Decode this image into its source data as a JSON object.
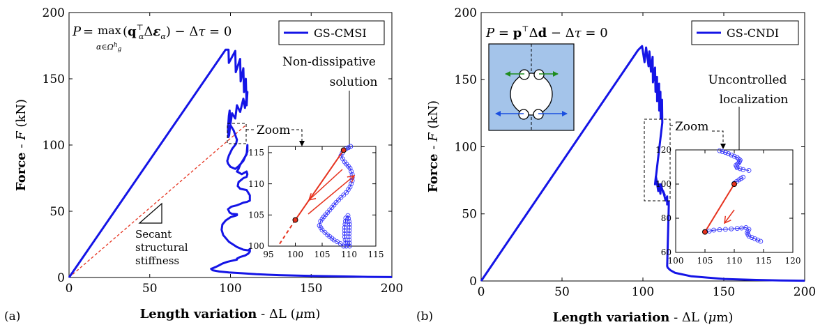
{
  "panels": [
    {
      "tag": "(a)",
      "equation": "P = max_{α∈Ω_g^h}(q_α^T Δε_α) − Δτ = 0",
      "legend": "GS-CMSI",
      "annotations": {
        "callout": [
          "Non-dissipative",
          "solution"
        ],
        "zoom": "Zoom",
        "secant": [
          "Secant",
          "structural",
          "stiffness"
        ]
      }
    },
    {
      "tag": "(b)",
      "equation": "P = p^T Δd − Δτ = 0",
      "legend": "GS-CNDI",
      "annotations": {
        "callout": [
          "Uncontrolled",
          "localization"
        ],
        "zoom": "Zoom"
      }
    }
  ],
  "colors": {
    "curve": "#1414e6",
    "highlight": "#e6321e",
    "inset_fill": "#a4c4ea",
    "green_arrow": "#1e8c1e"
  },
  "chart_data": [
    {
      "type": "line",
      "xlabel": "Length variation - ΔL (μm)",
      "ylabel": "Force - F (kN)",
      "xlim": [
        0,
        200
      ],
      "ylim": [
        0,
        200
      ],
      "xticks": [
        "0",
        "50",
        "100",
        "150",
        "200"
      ],
      "yticks": [
        "0",
        "50",
        "100",
        "150",
        "200"
      ],
      "series": [
        {
          "name": "GS-CMSI",
          "x": [
            0,
            97,
            98.8,
            99,
            103,
            103.3,
            106,
            106.3,
            108,
            108.4,
            109.5,
            110,
            110.5,
            109,
            108,
            106,
            104,
            103,
            101,
            100,
            99.5,
            99,
            98.6,
            98.5,
            98.8,
            99.2,
            99.7,
            100,
            102,
            104,
            103.5,
            101,
            99,
            98,
            98.5,
            100,
            103,
            105,
            108,
            110.5,
            110.5,
            110,
            108,
            106,
            105,
            104,
            107,
            110,
            110.5,
            110,
            108,
            105,
            104.5,
            106,
            110,
            112,
            112,
            110,
            108,
            106,
            104,
            100.5,
            98.5,
            99.5,
            101,
            104,
            104,
            100,
            97,
            95,
            94.5,
            95.5,
            99,
            104,
            108,
            111,
            112,
            112,
            111,
            109,
            106,
            104,
            104,
            101.5,
            98,
            95,
            93,
            91,
            88,
            89,
            93,
            99,
            107,
            116,
            130,
            150,
            170,
            185,
            200
          ],
          "y": [
            0,
            172,
            172,
            162,
            171,
            155,
            165,
            148,
            158,
            140,
            150,
            130,
            140,
            128,
            135,
            125,
            130,
            120,
            124,
            116,
            126,
            122,
            115,
            112,
            106,
            107.5,
            113.5,
            115,
            111,
            104,
            101,
            97,
            92,
            88,
            86,
            83.5,
            82,
            84,
            88,
            95,
            100,
            93,
            89,
            85,
            82,
            80,
            78,
            80,
            78,
            76,
            75,
            72,
            69,
            67,
            66,
            62,
            58,
            57,
            56.5,
            55.5,
            54.5,
            53.5,
            51.5,
            49,
            48,
            47.8,
            47,
            45.5,
            43,
            40,
            36,
            32,
            27,
            23,
            21,
            20.5,
            21.5,
            19.5,
            18,
            16.5,
            15.5,
            14.2,
            13.5,
            12.8,
            11.8,
            10.5,
            9.2,
            8,
            6.5,
            5.5,
            4.5,
            3.8,
            3.2,
            2.5,
            1.8,
            1.2,
            0.8,
            0.5,
            0.3
          ]
        }
      ],
      "inset": {
        "xlim": [
          95,
          115
        ],
        "ylim": [
          100,
          116
        ],
        "xticks": [
          "95",
          "100",
          "105",
          "110",
          "115"
        ],
        "yticks": [
          "100",
          "105",
          "110",
          "115"
        ],
        "points": [
          [
            100,
            104.2
          ],
          [
            109,
            115.4
          ]
        ]
      }
    },
    {
      "type": "line",
      "xlabel": "Length variation - ΔL (μm)",
      "ylabel": "Force - F (kN)",
      "xlim": [
        0,
        200
      ],
      "ylim": [
        0,
        200
      ],
      "xticks": [
        "0",
        "50",
        "100",
        "150",
        "200"
      ],
      "yticks": [
        "0",
        "50",
        "100",
        "150",
        "200"
      ],
      "series": [
        {
          "name": "GS-CNDI",
          "x": [
            0,
            97,
            99.5,
            101,
            102,
            103.5,
            104,
            105,
            106,
            106.2,
            107.5,
            107.8,
            108.7,
            108.8,
            110,
            110.1,
            110.8,
            111,
            111.8,
            112,
            107.5,
            108,
            109.5,
            110,
            110.8,
            111,
            112.5,
            113.5,
            112.5,
            114,
            115,
            115,
            116,
            116,
            115,
            115.3,
            117,
            120,
            130,
            150,
            170,
            185,
            200
          ],
          "y": [
            0,
            172,
            175,
            163,
            174,
            160,
            171,
            156,
            167,
            148,
            159,
            141,
            152,
            134,
            147,
            127,
            141,
            121,
            135,
            118,
            72,
            78,
            67,
            72,
            65,
            72,
            66,
            64,
            67,
            60,
            63,
            57,
            59,
            56,
            11,
            10,
            8,
            6,
            3.5,
            1.5,
            0.8,
            0.4,
            0.2
          ]
        }
      ],
      "inset": {
        "xlim": [
          100,
          120
        ],
        "ylim": [
          60,
          120
        ],
        "xticks": [
          "100",
          "105",
          "110",
          "115",
          "120"
        ],
        "yticks": [
          "60",
          "80",
          "100",
          "120"
        ],
        "points": [
          [
            110,
            100
          ],
          [
            105,
            72
          ]
        ]
      }
    }
  ]
}
